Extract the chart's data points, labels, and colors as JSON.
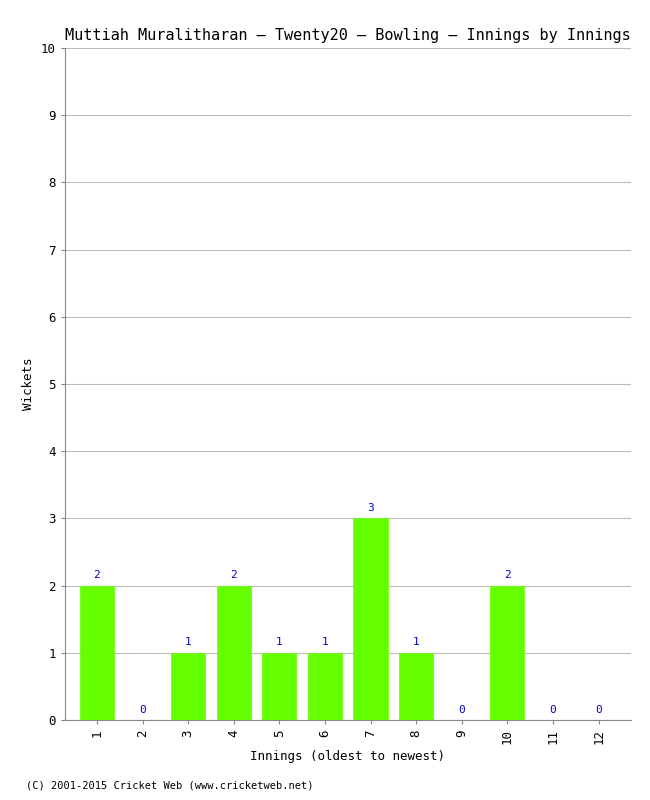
{
  "title": "Muttiah Muralitharan – Twenty20 – Bowling – Innings by Innings",
  "xlabel": "Innings (oldest to newest)",
  "ylabel": "Wickets",
  "innings": [
    1,
    2,
    3,
    4,
    5,
    6,
    7,
    8,
    9,
    10,
    11,
    12
  ],
  "wickets": [
    2,
    0,
    1,
    2,
    1,
    1,
    3,
    1,
    0,
    2,
    0,
    0
  ],
  "bar_color": "#66ff00",
  "bar_edge_color": "#66ff00",
  "label_color": "#0000cc",
  "ylim": [
    0,
    10
  ],
  "yticks": [
    0,
    1,
    2,
    3,
    4,
    5,
    6,
    7,
    8,
    9,
    10
  ],
  "background_color": "#ffffff",
  "grid_color": "#bbbbbb",
  "title_fontsize": 11,
  "axis_label_fontsize": 9,
  "tick_fontsize": 9,
  "value_label_fontsize": 8,
  "footer": "(C) 2001-2015 Cricket Web (www.cricketweb.net)"
}
